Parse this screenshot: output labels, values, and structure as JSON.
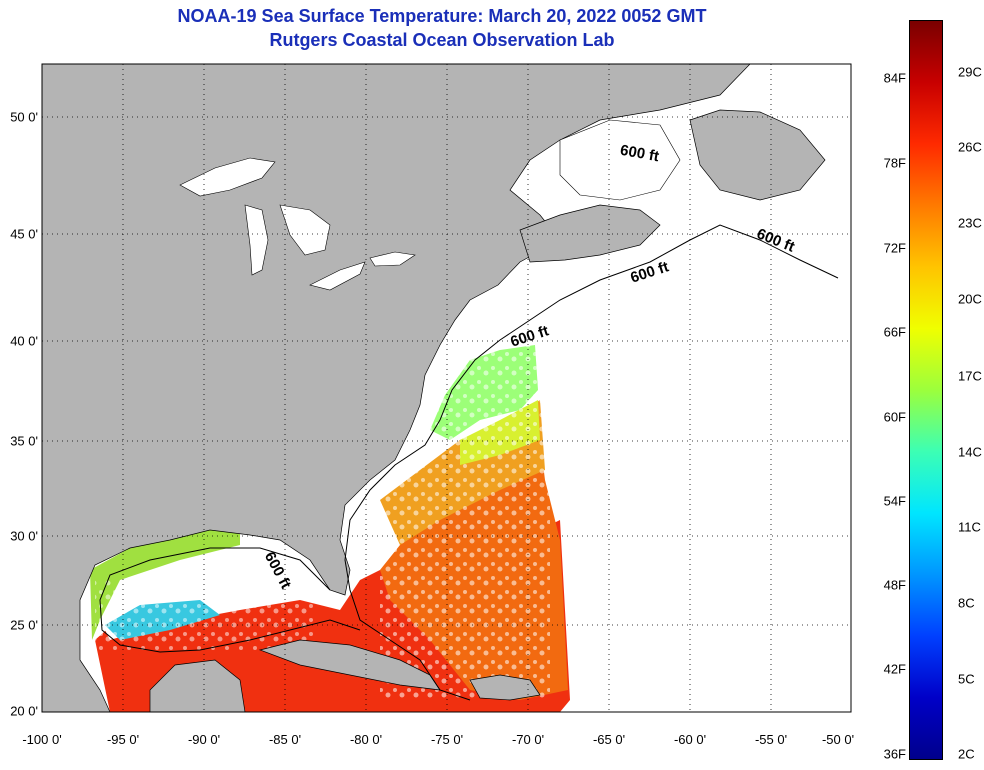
{
  "title": {
    "line1": "NOAA-19 Sea Surface Temperature:  March 20, 2022 0052 GMT",
    "line2": "Rutgers Coastal Ocean Observation Lab"
  },
  "map": {
    "lon_labels": [
      "-100 0'",
      "-95 0'",
      "-90 0'",
      "-85 0'",
      "-80 0'",
      "-75 0'",
      "-70 0'",
      "-65 0'",
      "-60 0'",
      "-55 0'",
      "-50 0'"
    ],
    "lat_labels": [
      "50 0'",
      "45 0'",
      "40 0'",
      "35 0'",
      "30 0'",
      "25 0'",
      "20 0'"
    ],
    "contour_labels": [
      "600 ft",
      "600 ft",
      "600 ft",
      "600 ft",
      "600 ft"
    ],
    "land_color": "#b4b4b4",
    "no_data_color": "#ffffff"
  },
  "colorbar": {
    "f_labels": [
      "84F",
      "78F",
      "72F",
      "66F",
      "60F",
      "54F",
      "48F",
      "42F",
      "36F"
    ],
    "c_labels": [
      "29C",
      "26C",
      "23C",
      "20C",
      "17C",
      "14C",
      "11C",
      "8C",
      "5C",
      "2C"
    ],
    "colors": [
      "#7a0000",
      "#c80000",
      "#ff2a00",
      "#ff7a00",
      "#ffc400",
      "#f0ff00",
      "#9cff3c",
      "#3cffb4",
      "#00e6ff",
      "#0096ff",
      "#0040ff",
      "#0000c8",
      "#00008c"
    ]
  }
}
